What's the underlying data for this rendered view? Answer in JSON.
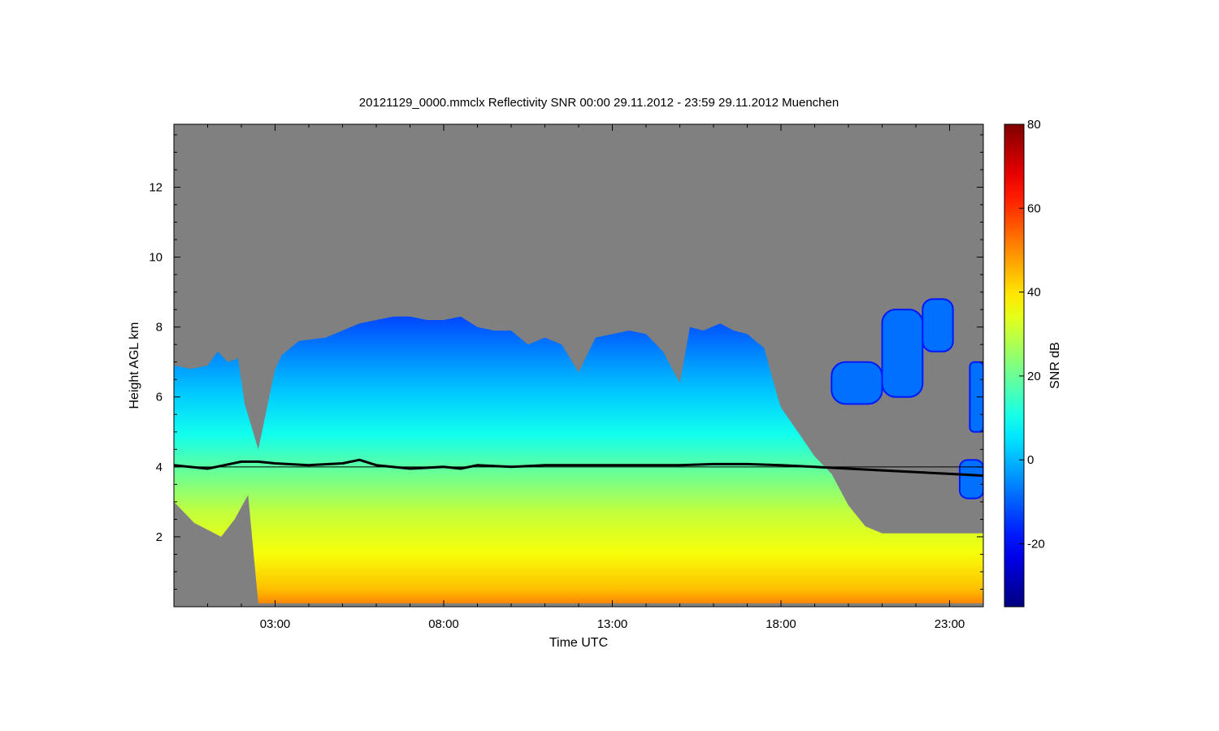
{
  "chart_data": {
    "type": "heatmap",
    "title": "20121129_0000.mmclx Reflectivity SNR   00:00 29.11.2012 - 23:59 29.11.2012 Muenchen",
    "xlabel": "Time UTC",
    "ylabel": "Height AGL km",
    "colorbar_label": "SNR dB",
    "xlim": [
      0,
      24
    ],
    "ylim": [
      0,
      13.8
    ],
    "x_ticks": [
      {
        "value": 3,
        "label": "03:00"
      },
      {
        "value": 8,
        "label": "08:00"
      },
      {
        "value": 13,
        "label": "13:00"
      },
      {
        "value": 18,
        "label": "18:00"
      },
      {
        "value": 23,
        "label": "23:00"
      }
    ],
    "y_ticks": [
      {
        "value": 2,
        "label": "2"
      },
      {
        "value": 4,
        "label": "4"
      },
      {
        "value": 6,
        "label": "6"
      },
      {
        "value": 8,
        "label": "8"
      },
      {
        "value": 10,
        "label": "10"
      },
      {
        "value": 12,
        "label": "12"
      }
    ],
    "colorbar_range": [
      -35,
      80
    ],
    "colorbar_ticks": [
      {
        "value": -20,
        "label": "-20"
      },
      {
        "value": 0,
        "label": "0"
      },
      {
        "value": 20,
        "label": "20"
      },
      {
        "value": 40,
        "label": "40"
      },
      {
        "value": 60,
        "label": "60"
      },
      {
        "value": 80,
        "label": "80"
      }
    ],
    "colormap": "jet",
    "missing_color": "#808080",
    "grid": false,
    "echo_top": {
      "x": [
        0,
        0.5,
        1,
        1.3,
        1.6,
        1.9,
        2.1,
        2.5,
        3,
        3.2,
        3.7,
        4.5,
        5,
        5.5,
        6,
        6.5,
        7,
        7.5,
        8,
        8.5,
        9,
        9.5,
        10,
        10.5,
        11,
        11.5,
        12,
        12.5,
        13,
        13.5,
        14,
        14.5,
        15,
        15.3,
        15.7,
        16.2,
        16.6,
        17,
        17.5,
        17.9,
        18,
        18.5,
        19,
        19.5,
        20,
        20.5,
        21,
        22,
        23,
        24
      ],
      "y": [
        6.9,
        6.8,
        6.9,
        7.3,
        7.0,
        7.1,
        5.8,
        4.5,
        6.8,
        7.2,
        7.6,
        7.7,
        7.9,
        8.1,
        8.2,
        8.3,
        8.3,
        8.2,
        8.2,
        8.3,
        8.0,
        7.9,
        7.9,
        7.5,
        7.7,
        7.5,
        6.7,
        7.7,
        7.8,
        7.9,
        7.8,
        7.3,
        6.4,
        8.0,
        7.9,
        8.1,
        7.9,
        7.8,
        7.4,
        6.0,
        5.7,
        5.0,
        4.3,
        3.8,
        2.9,
        2.3,
        2.1,
        2.1,
        2.1,
        2.1
      ]
    },
    "echo_bottom": {
      "x": [
        0,
        0.6,
        1.0,
        1.4,
        1.8,
        2.2,
        2.5,
        24
      ],
      "y": [
        3.0,
        2.4,
        2.2,
        2.0,
        2.5,
        3.2,
        0.1,
        0.1
      ]
    },
    "upper_cloud_patches": [
      {
        "x_start": 19.5,
        "x_end": 21.0,
        "y_low": 5.8,
        "y_high": 7.0
      },
      {
        "x_start": 21.0,
        "x_end": 22.2,
        "y_low": 6.0,
        "y_high": 8.5
      },
      {
        "x_start": 22.2,
        "x_end": 23.1,
        "y_low": 7.3,
        "y_high": 8.8
      },
      {
        "x_start": 23.6,
        "x_end": 24.0,
        "y_low": 5.0,
        "y_high": 7.0
      },
      {
        "x_start": 23.3,
        "x_end": 24.0,
        "y_low": 3.1,
        "y_high": 4.2
      }
    ],
    "melting_layer_line": {
      "name": "",
      "color": "#000000",
      "x": [
        0,
        1,
        1.5,
        2,
        2.5,
        3,
        4,
        5,
        5.5,
        6,
        7,
        8,
        8.5,
        9,
        10,
        11,
        12,
        13,
        14,
        15,
        16,
        17,
        18,
        19,
        20,
        21,
        22,
        23,
        24
      ],
      "y": [
        4.05,
        3.95,
        4.05,
        4.15,
        4.15,
        4.1,
        4.05,
        4.1,
        4.2,
        4.05,
        3.95,
        4.0,
        3.95,
        4.05,
        4.0,
        4.05,
        4.05,
        4.05,
        4.05,
        4.05,
        4.08,
        4.08,
        4.05,
        4.0,
        3.95,
        3.9,
        3.85,
        3.8,
        3.75
      ]
    },
    "reference_line": {
      "y": 4.0,
      "color": "#000000"
    }
  }
}
